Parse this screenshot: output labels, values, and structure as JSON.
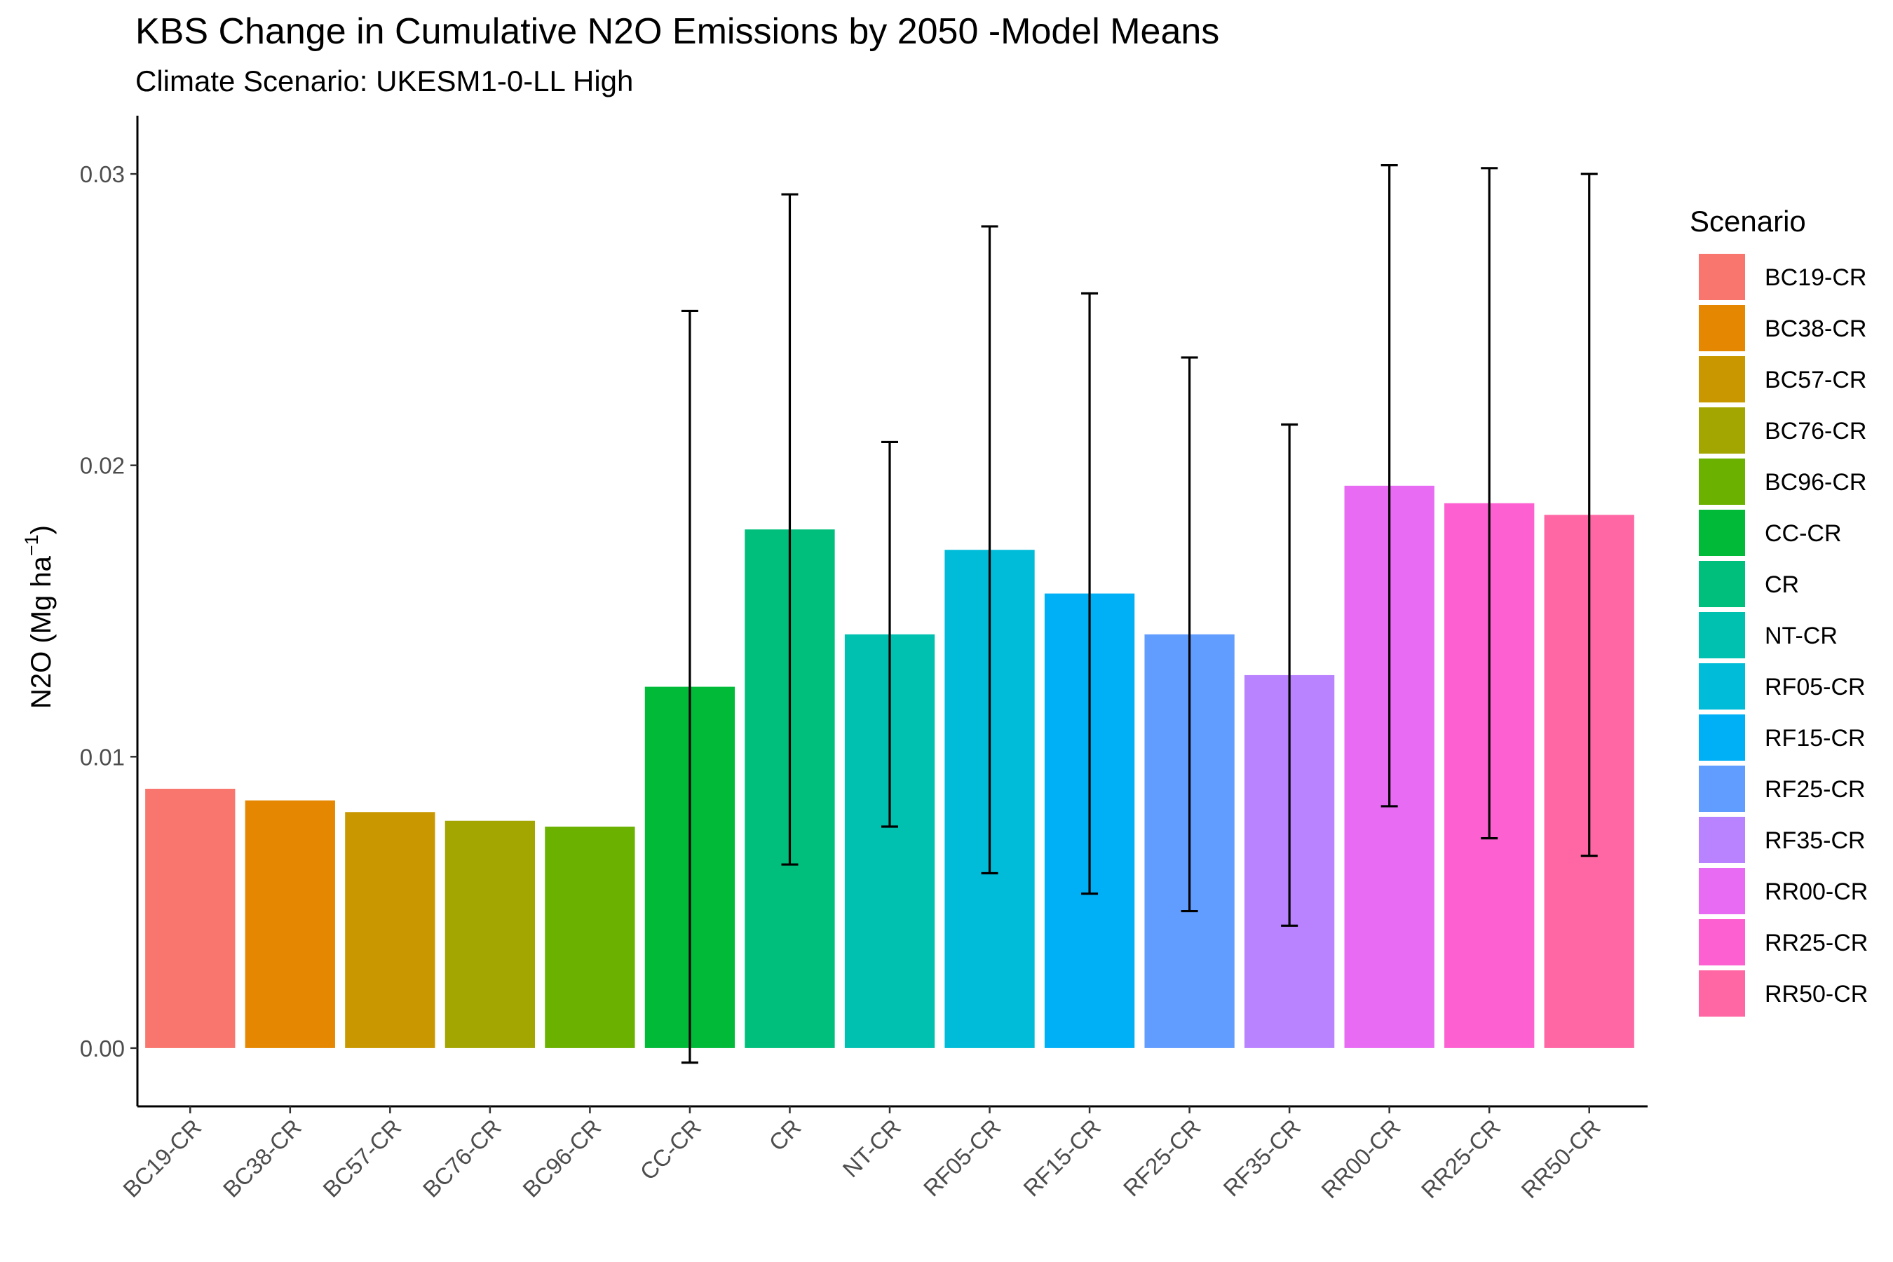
{
  "chart_data": {
    "type": "bar",
    "title": "KBS Change in Cumulative N2O Emissions by  2050 -Model Means",
    "subtitle": "Climate Scenario: UKESM1-0-LL High",
    "ylabel": "N2O (Mg ha",
    "ylabel_superscript": "−1",
    "ylabel_close": ")",
    "xlabel": "",
    "ylim": [
      -0.002,
      0.032
    ],
    "yticks": [
      0.0,
      0.01,
      0.02,
      0.03
    ],
    "ytick_labels": [
      "0.00",
      "0.01",
      "0.02",
      "0.03"
    ],
    "grid": false,
    "legend": {
      "title": "Scenario",
      "position": "right"
    },
    "categories": [
      "BC19-CR",
      "BC38-CR",
      "BC57-CR",
      "BC76-CR",
      "BC96-CR",
      "CC-CR",
      "CR",
      "NT-CR",
      "RF05-CR",
      "RF15-CR",
      "RF25-CR",
      "RF35-CR",
      "RR00-CR",
      "RR25-CR",
      "RR50-CR"
    ],
    "values": [
      0.0089,
      0.0085,
      0.0081,
      0.0078,
      0.0076,
      0.0124,
      0.0178,
      0.0142,
      0.0171,
      0.0156,
      0.0142,
      0.0128,
      0.0193,
      0.0187,
      0.0183
    ],
    "error_low": [
      null,
      null,
      null,
      null,
      null,
      -0.0005,
      0.0063,
      0.0076,
      0.006,
      0.0053,
      0.0047,
      0.0042,
      0.0083,
      0.0072,
      0.0066
    ],
    "error_high": [
      null,
      null,
      null,
      null,
      null,
      0.0253,
      0.0293,
      0.0208,
      0.0282,
      0.0259,
      0.0237,
      0.0214,
      0.0303,
      0.0302,
      0.03
    ],
    "colors": [
      "#F8766D",
      "#E58700",
      "#C99800",
      "#A3A500",
      "#6BB100",
      "#00BA38",
      "#00BF7D",
      "#00C0AF",
      "#00BCD8",
      "#00B0F6",
      "#619CFF",
      "#B983FF",
      "#E76BF3",
      "#FD61D1",
      "#FF67A4"
    ]
  }
}
